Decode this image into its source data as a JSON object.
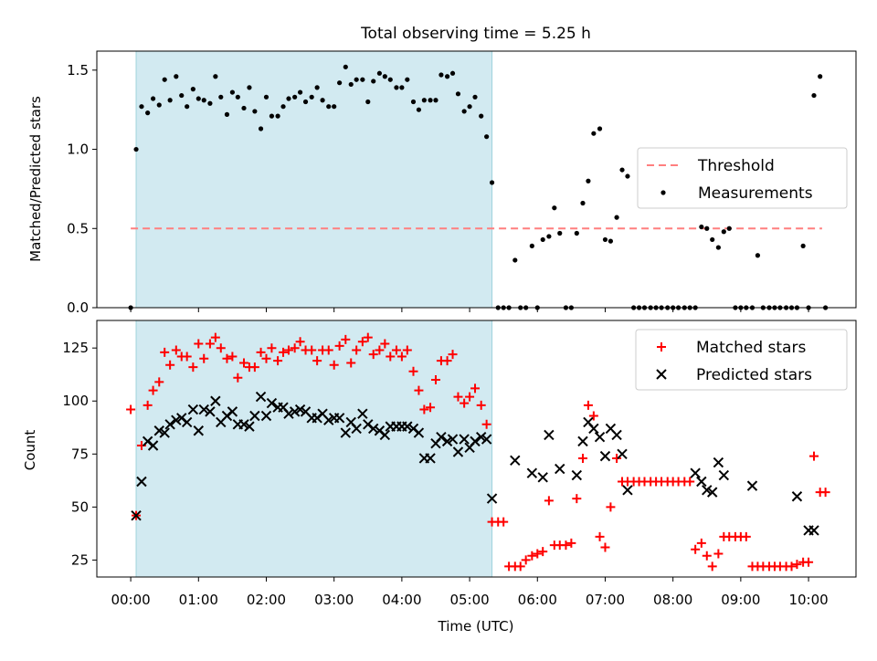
{
  "figure_title": "Total observing time = 5.25 h",
  "chart_data": [
    {
      "type": "scatter",
      "ylabel": "Matched/Predicted stars",
      "xlabel": "",
      "xlim_hours": [
        -0.5,
        10.7
      ],
      "ylim": [
        0,
        1.62
      ],
      "yticks": [
        0.0,
        0.5,
        1.0,
        1.5
      ],
      "ytick_labels": [
        "0.0",
        "0.5",
        "1.0",
        "1.5"
      ],
      "shaded_interval_hours": [
        0.08,
        5.33
      ],
      "shade_color": "#add8e6",
      "legend": {
        "placement": "right",
        "entries": [
          "Threshold",
          "Measurements"
        ]
      },
      "series": [
        {
          "name": "Threshold",
          "kind": "dashed-line",
          "color": "#ff7f7f",
          "x": [
            0.0,
            10.2
          ],
          "y": [
            0.5,
            0.5
          ]
        },
        {
          "name": "Measurements",
          "kind": "dot",
          "color": "#000000",
          "x": [
            0.0,
            0.08,
            0.16,
            0.25,
            0.33,
            0.42,
            0.5,
            0.58,
            0.67,
            0.75,
            0.83,
            0.92,
            1.0,
            1.08,
            1.17,
            1.25,
            1.33,
            1.42,
            1.5,
            1.58,
            1.67,
            1.75,
            1.83,
            1.92,
            2.0,
            2.08,
            2.17,
            2.25,
            2.33,
            2.42,
            2.5,
            2.58,
            2.67,
            2.75,
            2.83,
            2.92,
            3.0,
            3.08,
            3.17,
            3.25,
            3.33,
            3.42,
            3.5,
            3.58,
            3.67,
            3.75,
            3.83,
            3.92,
            4.0,
            4.08,
            4.17,
            4.25,
            4.33,
            4.42,
            4.5,
            4.58,
            4.67,
            4.75,
            4.83,
            4.92,
            5.0,
            5.08,
            5.17,
            5.25,
            5.33,
            5.42,
            5.5,
            5.58,
            5.67,
            5.75,
            5.83,
            5.92,
            6.0,
            6.08,
            6.17,
            6.25,
            6.33,
            6.42,
            6.5,
            6.58,
            6.67,
            6.75,
            6.83,
            6.92,
            7.0,
            7.08,
            7.17,
            7.25,
            7.33,
            7.42,
            7.5,
            7.58,
            7.67,
            7.75,
            7.83,
            7.92,
            8.0,
            8.08,
            8.17,
            8.25,
            8.33,
            8.42,
            8.5,
            8.58,
            8.67,
            8.75,
            8.83,
            8.92,
            9.0,
            9.08,
            9.17,
            9.25,
            9.33,
            9.42,
            9.5,
            9.58,
            9.67,
            9.75,
            9.83,
            9.92,
            10.0,
            10.08,
            10.17,
            10.25
          ],
          "y": [
            0.0,
            1.0,
            1.27,
            1.23,
            1.32,
            1.28,
            1.44,
            1.31,
            1.46,
            1.34,
            1.27,
            1.38,
            1.32,
            1.31,
            1.29,
            1.46,
            1.33,
            1.22,
            1.36,
            1.33,
            1.26,
            1.39,
            1.24,
            1.13,
            1.33,
            1.21,
            1.21,
            1.27,
            1.32,
            1.33,
            1.36,
            1.3,
            1.33,
            1.39,
            1.31,
            1.27,
            1.27,
            1.42,
            1.52,
            1.41,
            1.44,
            1.44,
            1.3,
            1.43,
            1.48,
            1.46,
            1.44,
            1.39,
            1.39,
            1.44,
            1.3,
            1.25,
            1.31,
            1.31,
            1.31,
            1.47,
            1.46,
            1.48,
            1.35,
            1.24,
            1.27,
            1.33,
            1.21,
            1.08,
            0.79,
            0.0,
            0.0,
            0.0,
            0.3,
            0.0,
            0.0,
            0.39,
            0.0,
            0.43,
            0.45,
            0.63,
            0.47,
            0.0,
            0.0,
            0.47,
            0.66,
            0.8,
            1.1,
            1.13,
            0.43,
            0.42,
            0.57,
            0.87,
            0.83,
            0.0,
            0.0,
            0.0,
            0.0,
            0.0,
            0.0,
            0.0,
            0.0,
            0.0,
            0.0,
            0.0,
            0.0,
            0.51,
            0.5,
            0.43,
            0.38,
            0.48,
            0.5,
            0.0,
            0.0,
            0.0,
            0.0,
            0.33,
            0.0,
            0.0,
            0.0,
            0.0,
            0.0,
            0.0,
            0.0,
            0.39,
            0.0,
            1.34,
            1.46,
            0.0
          ]
        }
      ]
    },
    {
      "type": "scatter",
      "ylabel": "Count",
      "xlabel": "Time (UTC)",
      "xlim_hours": [
        -0.5,
        10.7
      ],
      "ylim": [
        17,
        138
      ],
      "yticks": [
        25,
        50,
        75,
        100,
        125
      ],
      "ytick_labels": [
        "25",
        "50",
        "75",
        "100",
        "125"
      ],
      "xticks_hours": [
        0,
        1,
        2,
        3,
        4,
        5,
        6,
        7,
        8,
        9,
        10
      ],
      "xtick_labels": [
        "00:00",
        "01:00",
        "02:00",
        "03:00",
        "04:00",
        "05:00",
        "06:00",
        "07:00",
        "08:00",
        "09:00",
        "10:00"
      ],
      "shaded_interval_hours": [
        0.08,
        5.33
      ],
      "shade_color": "#add8e6",
      "legend": {
        "placement": "top-right",
        "entries": [
          "Matched stars",
          "Predicted stars"
        ]
      },
      "series": [
        {
          "name": "Matched stars",
          "marker": "plus",
          "color": "#ff0000",
          "x": [
            0.0,
            0.08,
            0.16,
            0.25,
            0.33,
            0.42,
            0.5,
            0.58,
            0.67,
            0.75,
            0.83,
            0.92,
            1.0,
            1.08,
            1.17,
            1.25,
            1.33,
            1.42,
            1.5,
            1.58,
            1.67,
            1.75,
            1.83,
            1.92,
            2.0,
            2.08,
            2.17,
            2.25,
            2.33,
            2.42,
            2.5,
            2.58,
            2.67,
            2.75,
            2.83,
            2.92,
            3.0,
            3.08,
            3.17,
            3.25,
            3.33,
            3.42,
            3.5,
            3.58,
            3.67,
            3.75,
            3.83,
            3.92,
            4.0,
            4.08,
            4.17,
            4.25,
            4.33,
            4.42,
            4.5,
            4.58,
            4.67,
            4.75,
            4.83,
            4.92,
            5.0,
            5.08,
            5.17,
            5.25,
            5.33,
            5.42,
            5.5,
            5.58,
            5.67,
            5.75,
            5.83,
            5.92,
            6.0,
            6.08,
            6.17,
            6.25,
            6.33,
            6.42,
            6.5,
            6.58,
            6.67,
            6.75,
            6.83,
            6.92,
            7.0,
            7.08,
            7.17,
            7.25,
            7.33,
            7.42,
            7.5,
            7.58,
            7.67,
            7.75,
            7.83,
            7.92,
            8.0,
            8.08,
            8.17,
            8.25,
            8.33,
            8.42,
            8.5,
            8.58,
            8.67,
            8.75,
            8.83,
            8.92,
            9.0,
            9.08,
            9.17,
            9.25,
            9.33,
            9.42,
            9.5,
            9.58,
            9.67,
            9.75,
            9.83,
            9.92,
            10.0,
            10.08,
            10.17,
            10.25
          ],
          "y": [
            96,
            46,
            79,
            98,
            105,
            109,
            123,
            117,
            124,
            121,
            121,
            116,
            127,
            120,
            127,
            130,
            125,
            120,
            121,
            111,
            118,
            116,
            116,
            123,
            120,
            125,
            119,
            123,
            124,
            125,
            128,
            124,
            124,
            119,
            124,
            124,
            117,
            126,
            129,
            118,
            124,
            128,
            130,
            122,
            124,
            127,
            121,
            124,
            121,
            124,
            114,
            105,
            96,
            97,
            110,
            119,
            119,
            122,
            102,
            99,
            102,
            106,
            98,
            89,
            43,
            43,
            43,
            22,
            22,
            22,
            25,
            27,
            28,
            29,
            53,
            32,
            32,
            32,
            33,
            54,
            73,
            98,
            93,
            36,
            31,
            50,
            73,
            62,
            62,
            62,
            62,
            62,
            62,
            62,
            62,
            62,
            62,
            62,
            62,
            62,
            30,
            33,
            27,
            22,
            28,
            36,
            36,
            36,
            36,
            36,
            22,
            22,
            22,
            22,
            22,
            22,
            22,
            22,
            23,
            24,
            24,
            74,
            57,
            57
          ]
        },
        {
          "name": "Predicted stars",
          "marker": "x",
          "color": "#000000",
          "x": [
            0.08,
            0.16,
            0.25,
            0.33,
            0.42,
            0.5,
            0.58,
            0.67,
            0.75,
            0.83,
            0.92,
            1.0,
            1.08,
            1.17,
            1.25,
            1.33,
            1.42,
            1.5,
            1.58,
            1.67,
            1.75,
            1.83,
            1.92,
            2.0,
            2.08,
            2.17,
            2.25,
            2.33,
            2.42,
            2.5,
            2.58,
            2.67,
            2.75,
            2.83,
            2.92,
            3.0,
            3.08,
            3.17,
            3.25,
            3.33,
            3.42,
            3.5,
            3.58,
            3.67,
            3.75,
            3.83,
            3.92,
            4.0,
            4.08,
            4.17,
            4.25,
            4.33,
            4.42,
            4.5,
            4.58,
            4.67,
            4.75,
            4.83,
            4.92,
            5.0,
            5.08,
            5.17,
            5.25,
            5.33,
            5.67,
            5.92,
            6.08,
            6.17,
            6.33,
            6.58,
            6.67,
            6.75,
            6.83,
            6.92,
            7.0,
            7.08,
            7.17,
            7.25,
            7.33,
            8.33,
            8.42,
            8.5,
            8.58,
            8.67,
            8.75,
            9.17,
            9.83,
            10.0,
            10.08
          ],
          "y": [
            46,
            62,
            81,
            79,
            86,
            85,
            89,
            91,
            92,
            90,
            96,
            86,
            96,
            95,
            100,
            90,
            93,
            95,
            89,
            89,
            88,
            93,
            102,
            93,
            99,
            97,
            97,
            94,
            95,
            96,
            95,
            92,
            92,
            94,
            91,
            92,
            92,
            85,
            90,
            87,
            94,
            89,
            87,
            86,
            84,
            88,
            88,
            88,
            88,
            87,
            85,
            73,
            73,
            80,
            83,
            81,
            82,
            76,
            82,
            78,
            81,
            83,
            82,
            54,
            72,
            66,
            64,
            84,
            68,
            65,
            81,
            90,
            87,
            83,
            74,
            87,
            84,
            75,
            58,
            66,
            62,
            58,
            57,
            71,
            65,
            60,
            55,
            39,
            39
          ]
        }
      ]
    }
  ]
}
